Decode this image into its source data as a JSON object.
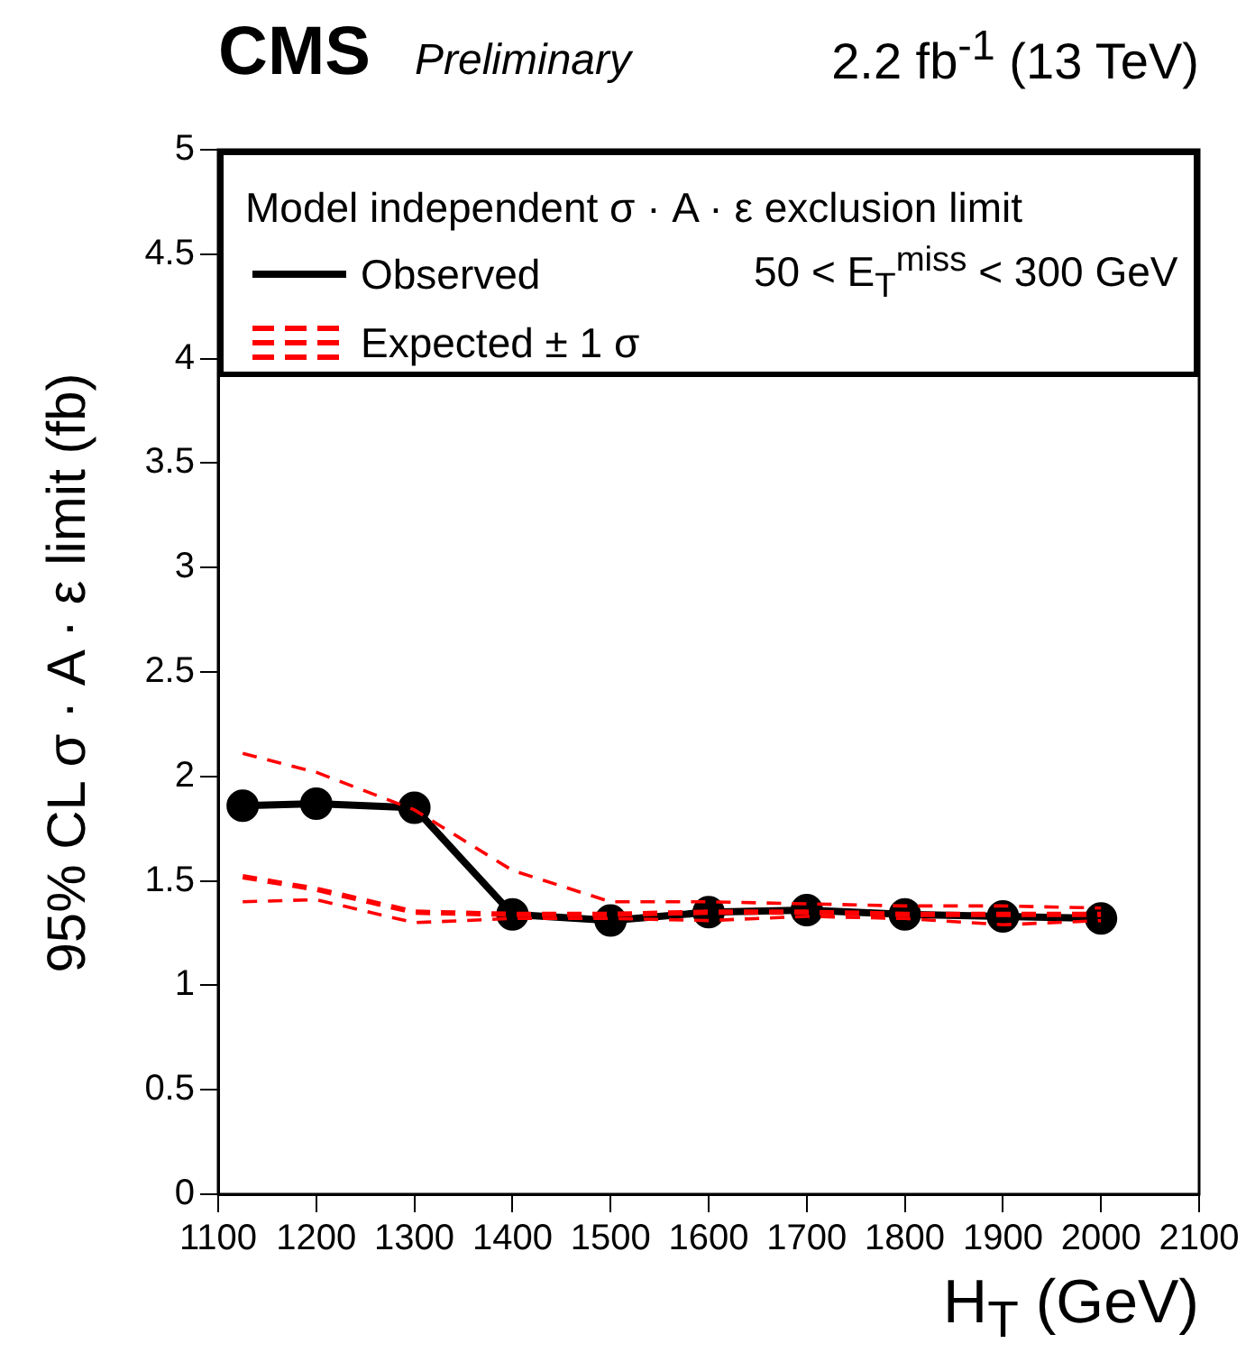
{
  "chart_data": {
    "type": "line",
    "title": "CMS",
    "subtitle": "Preliminary",
    "xlabel": "H$_{T}$ (GeV)",
    "ylabel": "95% CL σ · A · ε limit (fb)",
    "legend_title": "Model independent σ · A · ε exclusion limit",
    "annotations": [
      "2.2 fb$^{-1}$ (13 TeV)",
      "50 < E$_{T}$$^{miss}$ < 300 GeV"
    ],
    "x": [
      1125,
      1200,
      1300,
      1400,
      1500,
      1600,
      1700,
      1800,
      1900,
      2000
    ],
    "series": [
      {
        "name": "Observed",
        "color": "#000000",
        "marker": "circle",
        "line_style": "solid",
        "values": [
          1.86,
          1.87,
          1.85,
          1.34,
          1.31,
          1.35,
          1.36,
          1.34,
          1.33,
          1.32
        ]
      },
      {
        "name": "Expected ± 1 σ",
        "color": "#ff0000",
        "marker": "none",
        "line_style": "dashed",
        "values": [
          1.52,
          1.46,
          1.35,
          1.34,
          1.34,
          1.35,
          1.35,
          1.34,
          1.34,
          1.34
        ]
      },
      {
        "color": "#ff0000",
        "marker": "none",
        "line_style": "dashed",
        "values": [
          2.11,
          2.02,
          1.84,
          1.55,
          1.4,
          1.4,
          1.39,
          1.38,
          1.38,
          1.37
        ]
      },
      {
        "color": "#ff0000",
        "marker": "none",
        "line_style": "dashed",
        "values": [
          1.4,
          1.41,
          1.3,
          1.32,
          1.32,
          1.31,
          1.33,
          1.32,
          1.29,
          1.31
        ]
      }
    ],
    "xlim": [
      1100,
      2100
    ],
    "xticks": [
      1100,
      1200,
      1300,
      1400,
      1500,
      1600,
      1700,
      1800,
      1900,
      2000,
      2100
    ],
    "ylim": [
      0,
      5
    ],
    "yticks": [
      0,
      0.5,
      1,
      1.5,
      2,
      2.5,
      3,
      3.5,
      4,
      4.5,
      5
    ],
    "grid": false,
    "legend": "top"
  }
}
